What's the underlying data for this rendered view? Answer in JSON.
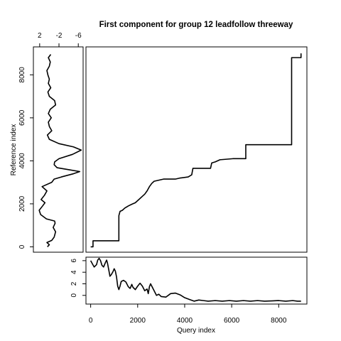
{
  "chart_data": [
    {
      "type": "line",
      "panel": "main",
      "title": "First component for group 12 leadfollow threeway",
      "xlabel": "",
      "ylabel": "",
      "xlim": [
        -200,
        9200
      ],
      "ylim": [
        -250,
        9300
      ],
      "series": [
        {
          "color": "#C08590",
          "points": [
            [
              0,
              0
            ],
            [
              100,
              0
            ],
            [
              100,
              280
            ],
            [
              1200,
              280
            ],
            [
              1200,
              1450
            ],
            [
              1250,
              1650
            ],
            [
              1350,
              1700
            ],
            [
              1450,
              1800
            ],
            [
              1600,
              1900
            ],
            [
              1750,
              1980
            ],
            [
              1900,
              2050
            ],
            [
              2050,
              2200
            ],
            [
              2200,
              2350
            ],
            [
              2300,
              2450
            ],
            [
              2400,
              2600
            ],
            [
              2500,
              2800
            ],
            [
              2600,
              2950
            ],
            [
              2700,
              3050
            ],
            [
              2900,
              3100
            ],
            [
              3100,
              3150
            ],
            [
              3600,
              3150
            ],
            [
              3800,
              3200
            ],
            [
              4150,
              3250
            ],
            [
              4300,
              3350
            ],
            [
              4350,
              3650
            ],
            [
              5100,
              3650
            ],
            [
              5150,
              3900
            ],
            [
              5300,
              3950
            ],
            [
              5500,
              4050
            ],
            [
              6050,
              4100
            ],
            [
              6600,
              4100
            ],
            [
              6600,
              4750
            ],
            [
              8550,
              4750
            ],
            [
              8550,
              8800
            ],
            [
              8950,
              8800
            ],
            [
              8950,
              9000
            ]
          ]
        }
      ]
    },
    {
      "type": "line",
      "panel": "bottom",
      "xlabel": "Query index",
      "ylabel": "",
      "xlim": [
        -200,
        9200
      ],
      "ylim": [
        -1.5,
        6.6
      ],
      "x_ticks": [
        "0",
        "2000",
        "4000",
        "6000",
        "8000"
      ],
      "y_ticks": [
        "0",
        "2",
        "4",
        "6"
      ],
      "series": [
        {
          "color": "#000000",
          "points": [
            [
              0,
              6.0
            ],
            [
              80,
              5.4
            ],
            [
              150,
              4.9
            ],
            [
              250,
              5.3
            ],
            [
              300,
              6.1
            ],
            [
              360,
              6.4
            ],
            [
              420,
              6.0
            ],
            [
              480,
              5.2
            ],
            [
              550,
              4.9
            ],
            [
              620,
              5.6
            ],
            [
              680,
              6.1
            ],
            [
              720,
              5.5
            ],
            [
              780,
              4.2
            ],
            [
              820,
              3.3
            ],
            [
              880,
              3.6
            ],
            [
              950,
              4.1
            ],
            [
              1000,
              4.6
            ],
            [
              1050,
              4.2
            ],
            [
              1100,
              3.2
            ],
            [
              1150,
              1.6
            ],
            [
              1200,
              1.0
            ],
            [
              1250,
              1.6
            ],
            [
              1300,
              2.4
            ],
            [
              1400,
              2.6
            ],
            [
              1500,
              2.3
            ],
            [
              1600,
              1.5
            ],
            [
              1680,
              1.2
            ],
            [
              1750,
              1.9
            ],
            [
              1800,
              1.4
            ],
            [
              1900,
              1.0
            ],
            [
              2000,
              1.6
            ],
            [
              2100,
              2.1
            ],
            [
              2200,
              1.6
            ],
            [
              2300,
              0.8
            ],
            [
              2400,
              1.1
            ],
            [
              2450,
              0.3
            ],
            [
              2500,
              1.5
            ],
            [
              2550,
              2.0
            ],
            [
              2600,
              1.6
            ],
            [
              2700,
              0.8
            ],
            [
              2800,
              0.0
            ],
            [
              2900,
              0.2
            ],
            [
              3000,
              -0.2
            ],
            [
              3200,
              -0.3
            ],
            [
              3400,
              0.3
            ],
            [
              3600,
              0.4
            ],
            [
              3800,
              0.1
            ],
            [
              4000,
              -0.4
            ],
            [
              4200,
              -0.7
            ],
            [
              4400,
              -1.0
            ],
            [
              4600,
              -0.8
            ],
            [
              4800,
              -0.9
            ],
            [
              5000,
              -1.0
            ],
            [
              5300,
              -0.9
            ],
            [
              5600,
              -1.0
            ],
            [
              5900,
              -0.9
            ],
            [
              6200,
              -1.0
            ],
            [
              6500,
              -0.9
            ],
            [
              6800,
              -1.0
            ],
            [
              7100,
              -0.9
            ],
            [
              7400,
              -1.0
            ],
            [
              7700,
              -0.95
            ],
            [
              8000,
              -0.9
            ],
            [
              8300,
              -1.0
            ],
            [
              8600,
              -0.9
            ],
            [
              8800,
              -1.0
            ],
            [
              8950,
              -1.0
            ]
          ]
        }
      ]
    },
    {
      "type": "line",
      "panel": "left",
      "xlabel": "",
      "ylabel": "Reference index",
      "xlim": [
        3.3,
        -7.0
      ],
      "ylim": [
        -250,
        9300
      ],
      "x_ticks": [
        "2",
        "-2",
        "-6"
      ],
      "y_ticks": [
        "0",
        "2000",
        "4000",
        "6000",
        "8000"
      ],
      "series": [
        {
          "color": "#000000",
          "points": [
            [
              0.4,
              0
            ],
            [
              0.0,
              100
            ],
            [
              0.5,
              200
            ],
            [
              -0.5,
              300
            ],
            [
              -1.0,
              450
            ],
            [
              -1.3,
              700
            ],
            [
              -0.8,
              900
            ],
            [
              -1.2,
              1100
            ],
            [
              -1.1,
              1200
            ],
            [
              0.6,
              1300
            ],
            [
              1.8,
              1500
            ],
            [
              2.1,
              1700
            ],
            [
              1.4,
              1900
            ],
            [
              0.9,
              2050
            ],
            [
              1.7,
              2200
            ],
            [
              1.0,
              2400
            ],
            [
              0.5,
              2600
            ],
            [
              1.5,
              2800
            ],
            [
              -0.5,
              3000
            ],
            [
              -1.0,
              3150
            ],
            [
              -2.5,
              3250
            ],
            [
              -5.0,
              3400
            ],
            [
              -6.3,
              3500
            ],
            [
              -4.2,
              3580
            ],
            [
              -1.6,
              3680
            ],
            [
              -1.0,
              3820
            ],
            [
              -1.1,
              3950
            ],
            [
              -2.0,
              4100
            ],
            [
              -4.8,
              4300
            ],
            [
              -6.6,
              4500
            ],
            [
              -5.0,
              4650
            ],
            [
              -2.0,
              4800
            ],
            [
              0.0,
              5000
            ],
            [
              0.4,
              5200
            ],
            [
              -0.5,
              5400
            ],
            [
              0.0,
              5600
            ],
            [
              0.2,
              5800
            ],
            [
              -0.4,
              6000
            ],
            [
              0.2,
              6200
            ],
            [
              -0.2,
              6400
            ],
            [
              -1.3,
              6600
            ],
            [
              -1.1,
              6800
            ],
            [
              0.0,
              7000
            ],
            [
              0.3,
              7200
            ],
            [
              -0.3,
              7400
            ],
            [
              0.2,
              7600
            ],
            [
              0.0,
              7800
            ],
            [
              0.3,
              8000
            ],
            [
              0.5,
              8200
            ],
            [
              0.0,
              8400
            ],
            [
              -0.2,
              8600
            ],
            [
              0.2,
              8800
            ],
            [
              -0.3,
              8950
            ]
          ]
        }
      ]
    }
  ]
}
